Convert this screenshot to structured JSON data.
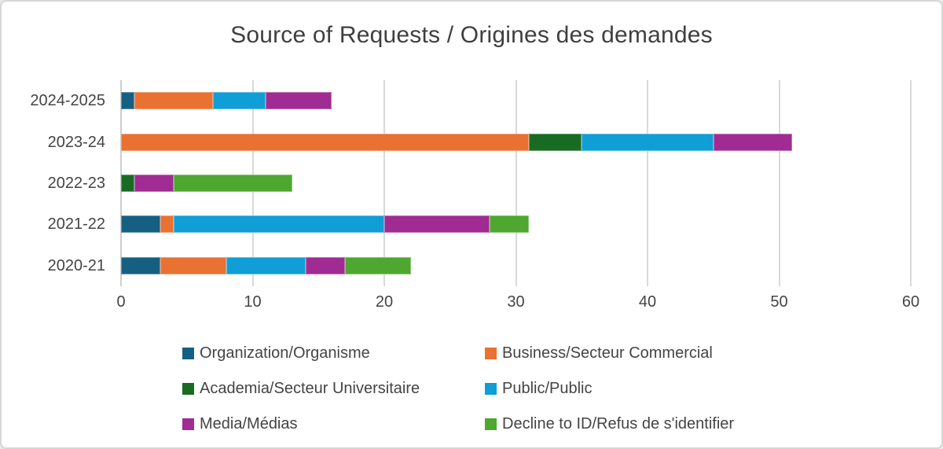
{
  "chart_data": {
    "type": "bar",
    "orientation": "horizontal",
    "stacked": true,
    "title": "Source of Requests / Origines des demandes",
    "categories": [
      "2024-2025",
      "2023-24",
      "2022-23",
      "2021-22",
      "2020-21"
    ],
    "series": [
      {
        "name": "Organization/Organisme",
        "color": "#156082",
        "values": [
          1,
          0,
          0,
          3,
          3
        ]
      },
      {
        "name": "Business/Secteur Commercial",
        "color": "#E97132",
        "values": [
          6,
          31,
          0,
          1,
          5
        ]
      },
      {
        "name": "Academia/Secteur Universitaire",
        "color": "#196B24",
        "values": [
          0,
          4,
          1,
          0,
          0
        ]
      },
      {
        "name": "Public/Public",
        "color": "#0F9ED5",
        "values": [
          4,
          10,
          0,
          16,
          6
        ]
      },
      {
        "name": "Media/Médias",
        "color": "#A02B93",
        "values": [
          5,
          6,
          3,
          8,
          3
        ]
      },
      {
        "name": "Decline to ID/Refus de s'identifier",
        "color": "#4EA72E",
        "values": [
          0,
          0,
          9,
          3,
          5
        ]
      }
    ],
    "category_totals": [
      16,
      51,
      13,
      31,
      22
    ],
    "x_axis": {
      "min": 0,
      "max": 60,
      "tick_interval": 10,
      "tick_labels": [
        "0",
        "10",
        "20",
        "30",
        "40",
        "50",
        "60"
      ]
    },
    "grid": true,
    "gridline_color": "#D9D9D9",
    "legend_position": "bottom",
    "legend_columns": 2,
    "text_color": "#444444",
    "title_color": "#3F3F3F",
    "background_color": "#FFFFFF"
  }
}
